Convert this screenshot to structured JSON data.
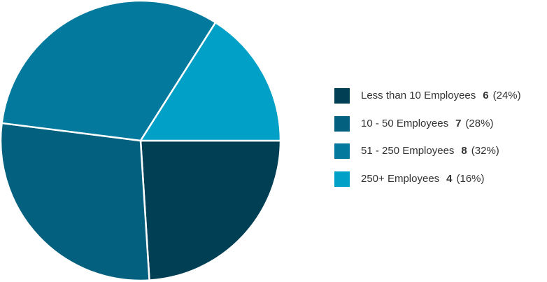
{
  "chart_data": {
    "type": "pie",
    "categories": [
      "Less than 10 Employees",
      "10 - 50 Employees",
      "51 - 250 Employees",
      "250+ Employees"
    ],
    "values": [
      6,
      7,
      8,
      4
    ],
    "share_labels": [
      "(24%)",
      "(28%)",
      "(32%)",
      "(16%)"
    ],
    "colors": [
      "#013f55",
      "#03607e",
      "#02799d",
      "#01a0c6"
    ],
    "start_angle": 0,
    "direction": "clockwise",
    "legend": "right"
  }
}
